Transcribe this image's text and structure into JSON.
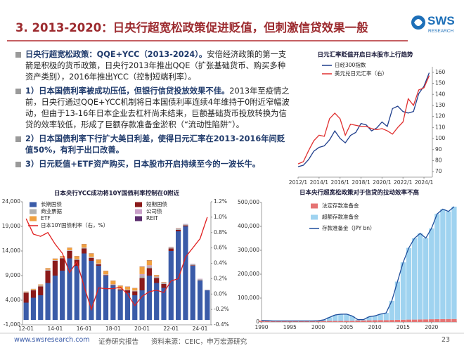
{
  "header": {
    "title": "3. 2013-2020：日央行超宽松政策促进贬值，但刺激信贷效果一般"
  },
  "logo": {
    "name": "SWS",
    "sub": "RESEARCH"
  },
  "bullets": [
    {
      "bold": "日央行超宽松政策：QQE+YCC（2013-2024）。",
      "text": "安倍经济政策的第一支箭是积极的货币政策，日央行2013年推出QQE（扩张基础货币、购买多种资产类别），2016年推出YCC（控制短端利率）。"
    },
    {
      "bold": "1）日本国债利率被成功压低，但银行信贷投放效果不佳。",
      "text": "2013年至疫情之前，日央行通过QQE+YCC机制将日本国债利率连续4年维持于0附近窄幅波动，但由于13-16年日本企业去杠杆尚未结束，巨额基础货币投放转换为信贷的效率较低，形成了巨额存款准备金淤积（“流动性陷阱”）。"
    },
    {
      "bold": "2）日本国债利率下行扩大美日利差，使得日元汇率在2013-2016年间贬值50%，有利于出口改善。"
    },
    {
      "bold": "3）日元贬值+ETF资产购买，日本股市开启持续至今的一波长牛。"
    }
  ],
  "chart_data": [
    {
      "type": "line",
      "title": "日元汇率贬值开启日本股市上行趋势",
      "x": [
        2012,
        2012.5,
        2013,
        2013.5,
        2014,
        2014.5,
        2015,
        2015.5,
        2016,
        2016.5,
        2017,
        2017.5,
        2018,
        2018.5,
        2019,
        2019.5,
        2020,
        2020.5,
        2021,
        2021.5,
        2022,
        2022.5,
        2023,
        2023.5,
        2024,
        2024.5
      ],
      "xlim": [
        2012,
        2024.8
      ],
      "xticks": [
        {
          "value": 2012,
          "label": "2012/1"
        },
        {
          "value": 2014,
          "label": "2014/1"
        },
        {
          "value": 2016,
          "label": "2016/1"
        },
        {
          "value": 2018,
          "label": "2018/1"
        },
        {
          "value": 2020,
          "label": "2020/1"
        },
        {
          "value": 2022,
          "label": "2022/1"
        },
        {
          "value": 2024,
          "label": "2024/1"
        }
      ],
      "ylim": [
        5000,
        42000
      ],
      "y2lim": [
        65,
        165
      ],
      "y2ticks": [
        70,
        80,
        90,
        100,
        110,
        120,
        130,
        140,
        150,
        160
      ],
      "series": [
        {
          "name": "日经300指数",
          "color": "#1f3e8c",
          "values": [
            8500,
            9000,
            10900,
            13700,
            15000,
            15500,
            17500,
            20500,
            18000,
            16500,
            19000,
            20000,
            23000,
            22500,
            20500,
            21500,
            23500,
            22000,
            28000,
            28800,
            27000,
            26500,
            27000,
            33000,
            35500,
            40000
          ]
        },
        {
          "name": "美元兑日元汇率（右）",
          "color": "#e03030",
          "axis": "y2",
          "values": [
            77,
            79,
            89,
            98,
            103,
            102,
            118,
            123,
            118,
            103,
            113,
            112,
            111,
            111,
            109,
            108,
            109,
            107,
            104,
            110,
            115,
            136,
            130,
            144,
            146,
            157
          ]
        }
      ]
    },
    {
      "type": "bar",
      "title": "日本央行YCC成功将10Y国债利率控制在0附近",
      "categories": [
        "12-01",
        null,
        null,
        null,
        "14-01",
        null,
        null,
        null,
        "16-01",
        null,
        null,
        null,
        "18-01",
        null,
        null,
        null,
        "20-01",
        null,
        null,
        null,
        "22-01",
        null,
        null,
        null,
        "24-01",
        null
      ],
      "ylim": [
        -1000,
        24000
      ],
      "yticks": [
        {
          "value": -1000,
          "label": "-1,000"
        },
        {
          "value": 4000,
          "label": "4,000"
        },
        {
          "value": 9000,
          "label": "9,000"
        },
        {
          "value": 14000,
          "label": "14,000"
        },
        {
          "value": 19000,
          "label": "19,000"
        },
        {
          "value": 24000,
          "label": "24,000"
        }
      ],
      "y2lim": [
        -0.4,
        1.2
      ],
      "y2ticks": [
        {
          "value": -0.4,
          "label": "-0.4%"
        },
        {
          "value": -0.2,
          "label": "-0.2%"
        },
        {
          "value": 0,
          "label": "0.0%"
        },
        {
          "value": 0.2,
          "label": "0.2%"
        },
        {
          "value": 0.4,
          "label": "0.4%"
        },
        {
          "value": 0.6,
          "label": "0.6%"
        },
        {
          "value": 0.8,
          "label": "0.8%"
        },
        {
          "value": 1.0,
          "label": "1.0%"
        },
        {
          "value": 1.2,
          "label": "1.2%"
        }
      ],
      "series": [
        {
          "name": "长期国债",
          "color": "#3a5ba8",
          "values": [
            3500,
            4500,
            5000,
            7500,
            9000,
            10000,
            12500,
            11000,
            13500,
            12000,
            11000,
            9000,
            7000,
            6000,
            5500,
            5000,
            6000,
            9000,
            7500,
            6500,
            14000,
            18000,
            19000,
            11000,
            8000,
            6000
          ]
        },
        {
          "name": "短期国债",
          "color": "#8b1a1a",
          "values": [
            2000,
            1500,
            1800,
            2500,
            3000,
            2500,
            1500,
            1200,
            1000,
            600,
            300,
            100,
            100,
            200,
            500,
            800,
            2500,
            1500,
            1000,
            800,
            500,
            300,
            200,
            100,
            50,
            0
          ]
        },
        {
          "name": "商业票据",
          "color": "#b0b0b0",
          "values": [
            100,
            100,
            150,
            150,
            100,
            100,
            100,
            100,
            150,
            150,
            100,
            100,
            100,
            100,
            100,
            100,
            500,
            300,
            200,
            200,
            200,
            200,
            200,
            200,
            200,
            100
          ]
        },
        {
          "name": "公司债",
          "color": "#c9a0c9",
          "values": [
            50,
            50,
            50,
            50,
            50,
            50,
            50,
            50,
            50,
            50,
            50,
            50,
            50,
            50,
            50,
            50,
            300,
            300,
            100,
            100,
            100,
            100,
            100,
            100,
            100,
            50
          ]
        },
        {
          "name": "ETF",
          "color": "#f0a040",
          "values": [
            100,
            150,
            200,
            300,
            300,
            300,
            500,
            600,
            700,
            700,
            800,
            700,
            700,
            600,
            600,
            500,
            1500,
            1000,
            300,
            100,
            50,
            50,
            0,
            0,
            0,
            0
          ]
        },
        {
          "name": "REIT",
          "color": "#5b2d6e",
          "values": [
            10,
            10,
            10,
            20,
            20,
            20,
            30,
            30,
            30,
            30,
            30,
            30,
            30,
            30,
            30,
            30,
            50,
            40,
            20,
            10,
            10,
            10,
            0,
            0,
            0,
            0
          ]
        },
        {
          "name": "日本10Y国债利率（右，%）",
          "color": "#e02020",
          "type": "line",
          "axis": "y2",
          "values": [
            0.98,
            0.78,
            0.75,
            0.8,
            0.65,
            0.53,
            0.28,
            0.42,
            0.1,
            -0.2,
            0.08,
            0.07,
            0.07,
            0.09,
            0.0,
            -0.15,
            -0.03,
            0.03,
            0.05,
            0.02,
            0.17,
            0.2,
            0.48,
            0.6,
            0.72,
            1.0
          ]
        }
      ]
    },
    {
      "type": "bar",
      "title": "日本央行超宽松政策对于信贷的拉动效率不高",
      "x": [
        1990,
        1991,
        1992,
        1993,
        1994,
        1995,
        1996,
        1997,
        1998,
        1999,
        2000,
        2001,
        2002,
        2003,
        2004,
        2005,
        2006,
        2007,
        2008,
        2009,
        2010,
        2011,
        2012,
        2013,
        2014,
        2015,
        2016,
        2017,
        2018,
        2019,
        2020,
        2021,
        2022,
        2023,
        2024
      ],
      "xlim": [
        1990,
        2024.5
      ],
      "xticks": [
        1990,
        1995,
        2000,
        2005,
        2010,
        2015,
        2020
      ],
      "ylim": [
        0,
        500000
      ],
      "yticks": [
        0,
        {
          "value": 100000,
          "label": "100,000"
        },
        {
          "value": 200000,
          "label": "200,000"
        },
        {
          "value": 300000,
          "label": "300,000"
        },
        {
          "value": 400000,
          "label": "400,000"
        },
        {
          "value": 500000,
          "label": "500,000"
        }
      ],
      "series": [
        {
          "name": "法定存款准备金",
          "color": "#e57373",
          "values": [
            5500,
            5000,
            4000,
            4000,
            4000,
            4000,
            4000,
            4000,
            4000,
            4000,
            4000,
            4000,
            4500,
            4500,
            4500,
            5000,
            5000,
            6000,
            6500,
            7000,
            7500,
            8000,
            8000,
            8500,
            9000,
            9500,
            10000,
            10000,
            10500,
            11000,
            11500,
            12000,
            12000,
            12500,
            12500
          ]
        },
        {
          "name": "超额存款准备金",
          "color": "#9fd3f0",
          "values": [
            500,
            500,
            500,
            500,
            500,
            500,
            500,
            500,
            500,
            500,
            1000,
            5000,
            15000,
            25000,
            28000,
            28000,
            20000,
            4000,
            3500,
            15000,
            18000,
            25000,
            30000,
            80000,
            160000,
            240000,
            300000,
            340000,
            360000,
            340000,
            380000,
            440000,
            460000,
            450000,
            470000
          ]
        },
        {
          "name": "存款准备金（JPY bn）",
          "color": "#1f4e9c",
          "type": "line",
          "values": [
            6000,
            5500,
            4500,
            4500,
            4500,
            4500,
            4500,
            4500,
            4500,
            4500,
            5000,
            9000,
            19500,
            29500,
            32500,
            33000,
            25000,
            10000,
            10000,
            22000,
            25500,
            33000,
            38000,
            88500,
            169000,
            249500,
            310000,
            350000,
            370500,
            351000,
            391500,
            452000,
            472000,
            462500,
            482500
          ]
        }
      ]
    }
  ],
  "footer": {
    "site": "www.swsresearch.com",
    "label": "证券研究报告",
    "source": "资料来源：CEIC，申万宏源研究",
    "page": "23"
  }
}
